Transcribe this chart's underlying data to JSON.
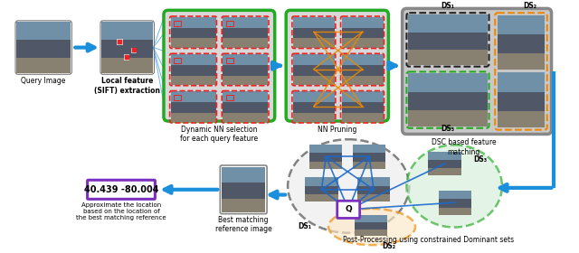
{
  "bg_color": "#ffffff",
  "fig_width": 6.4,
  "fig_height": 2.8,
  "labels": {
    "query_image": "Query Image",
    "local_feature": "Local feature\n(SIFT) extraction",
    "dynamic_nn": "Dynamic NN selection\nfor each query feature",
    "nn_pruning": "NN Pruning",
    "dsc_matching": "DSC based feature\nmatching",
    "post_processing": "Post-Processing using constrained Dominant sets",
    "best_matching": "Best matching\nreference image",
    "approx_location": "Approximate the location\nbased on the location of\nthe best matching reference",
    "coordinates": "40.439 -80.004",
    "ds1_top": "DS₁",
    "ds2_top": "DS₂",
    "ds3_bottom": "DS₃",
    "ds1_post": "DS₁",
    "ds2_post": "DS₂",
    "ds3_post": "DS₃",
    "q_label": "Q"
  },
  "colors": {
    "arrow_blue": "#1a8fdb",
    "box_green": "#22aa22",
    "box_red": "#ee2222",
    "box_orange": "#ee8800",
    "box_dark": "#222222",
    "line_orange": "#ee8800",
    "line_blue": "#1a6acc",
    "coord_box_purple": "#7b2fbe",
    "ellipse_green_fill": "#d4edda",
    "ellipse_orange_fill": "#fde8c8",
    "ellipse_gray_fill": "#e8e8e8",
    "img_sky": "#7fa8c8",
    "img_road": "#999988",
    "img_building": "#aaaaaa",
    "box_bg_gray": "#d8d8d8",
    "dsc_box_bg": "#c8c8c8"
  }
}
